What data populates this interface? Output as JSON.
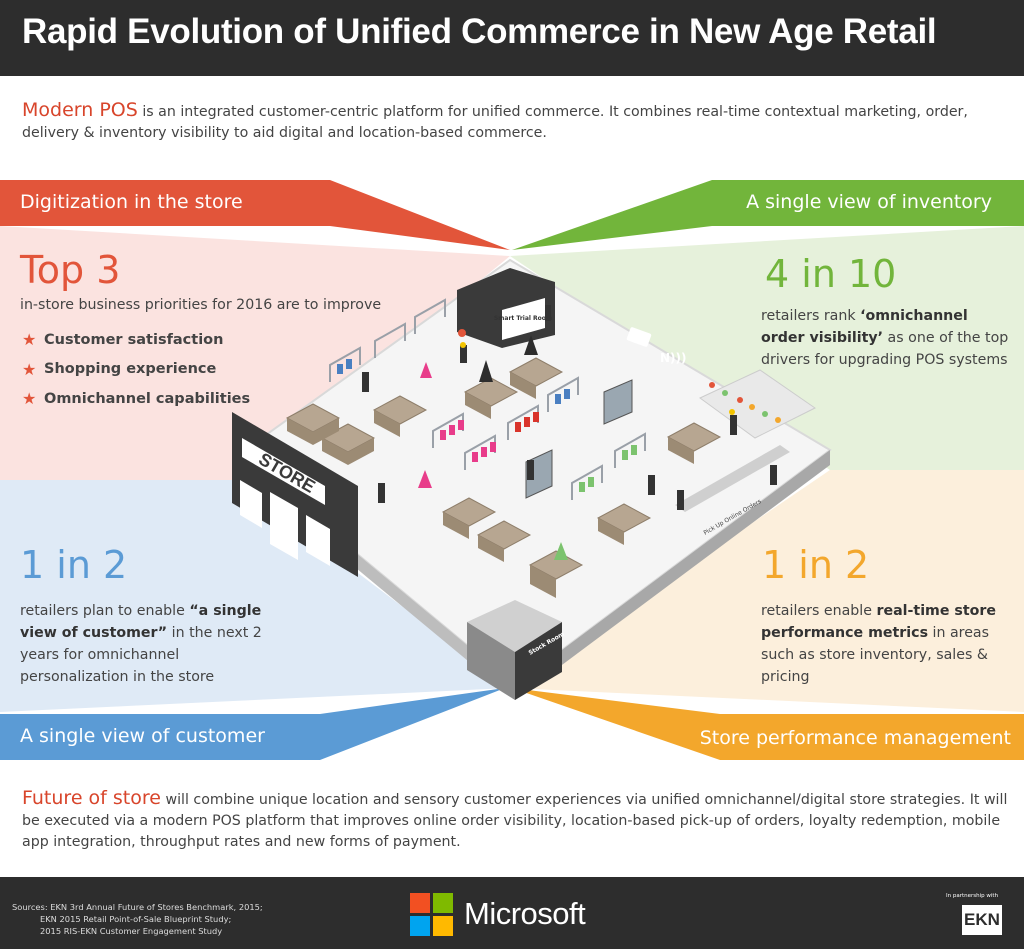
{
  "title": "Rapid Evolution of Unified Commerce in New Age Retail",
  "intro": {
    "highlight": "Modern POS",
    "text": " is an integrated customer-centric platform for unified commerce. It combines real-time contextual marketing, order, delivery & inventory visibility to aid digital and location-based commerce."
  },
  "sections": {
    "top_left": {
      "label": "Digitization in the store",
      "stat": "Top 3",
      "text": "in-store business priorities for 2016 are to improve",
      "items": [
        "Customer satisfaction",
        "Shopping experience",
        "Omnichannel capabilities"
      ]
    },
    "top_right": {
      "label": "A single view of inventory",
      "stat": "4 in 10",
      "text_pre": "retailers rank ",
      "text_bold": "‘omnichannel order visibility’",
      "text_post": " as one of the top drivers for upgrading POS systems"
    },
    "bottom_left": {
      "label": "A single view of customer",
      "stat": "1 in 2",
      "text_pre": "retailers plan to enable ",
      "text_bold": "“a single view of customer”",
      "text_post": " in the next 2 years for omnichannel personalization in the store"
    },
    "bottom_right": {
      "label": "Store performance management",
      "stat": "1 in 2",
      "text_pre": "retailers enable ",
      "text_bold": "real-time store performance metrics",
      "text_post": " in areas such as store inventory, sales & pricing"
    }
  },
  "store_signs": {
    "store": "STORE",
    "trial": "Smart Trial Room",
    "stock": "Stock Room",
    "pickup": "Pick Up Online Orders"
  },
  "future": {
    "highlight": "Future of store",
    "text": " will combine unique location and sensory customer experiences via unified omnichannel/digital store strategies. It will be executed via a modern POS platform that improves online order visibility, location-based pick-up of orders, loyalty redemption, mobile app integration, throughput rates and new forms of payment."
  },
  "footer": {
    "sources": [
      "Sources: EKN 3rd Annual Future of Stores Benchmark, 2015;",
      "EKN 2015 Retail Point-of-Sale Blueprint Study;",
      "2015 RIS-EKN Customer Engagement Study"
    ],
    "brand": "Microsoft",
    "partner": "In partnership with",
    "partner_logo": "EKN"
  },
  "colors": {
    "red": "#e2553a",
    "green": "#72b53b",
    "blue": "#5b9bd5",
    "orange": "#f3a72c",
    "dark": "#2d2d2d"
  }
}
